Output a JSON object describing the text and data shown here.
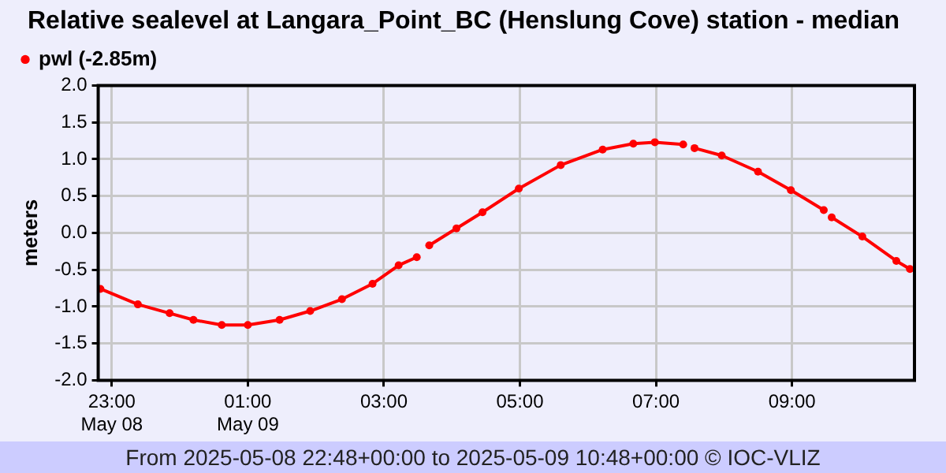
{
  "chart_data": {
    "type": "line",
    "title": "Relative sealevel at Langara_Point_BC (Henslung Cove) station - median",
    "ylabel": "meters",
    "x": [
      "2025-05-08T22:50",
      "2025-05-08T23:23",
      "2025-05-08T23:51",
      "2025-05-09T00:12",
      "2025-05-09T00:37",
      "2025-05-09T01:00",
      "2025-05-09T01:28",
      "2025-05-09T01:55",
      "2025-05-09T02:23",
      "2025-05-09T02:50",
      "2025-05-09T03:13",
      "2025-05-09T03:29",
      "2025-05-09T03:35",
      "2025-05-09T03:40",
      "2025-05-09T04:04",
      "2025-05-09T04:27",
      "2025-05-09T04:59",
      "2025-05-09T05:36",
      "2025-05-09T06:13",
      "2025-05-09T06:40",
      "2025-05-09T06:59",
      "2025-05-09T07:24",
      "2025-05-09T07:29",
      "2025-05-09T07:34",
      "2025-05-09T07:58",
      "2025-05-09T08:30",
      "2025-05-09T08:59",
      "2025-05-09T09:28",
      "2025-05-09T09:31",
      "2025-05-09T09:35",
      "2025-05-09T10:02",
      "2025-05-09T10:32",
      "2025-05-09T10:44"
    ],
    "series": [
      {
        "name": "pwl (-2.85m)",
        "color": "#ff0000",
        "values": [
          -0.76,
          -0.97,
          -1.09,
          -1.18,
          -1.25,
          -1.25,
          -1.18,
          -1.06,
          -0.9,
          -0.69,
          -0.44,
          -0.33,
          null,
          -0.17,
          0.06,
          0.28,
          0.6,
          0.92,
          1.13,
          1.21,
          1.23,
          1.2,
          null,
          1.15,
          1.05,
          0.83,
          0.58,
          0.31,
          null,
          0.21,
          -0.05,
          -0.38,
          -0.49
        ]
      }
    ],
    "xlim": [
      "2025-05-08T22:48",
      "2025-05-09T10:48"
    ],
    "xticks": [
      {
        "value": "2025-05-08T23:00",
        "label": "23:00\nMay 08"
      },
      {
        "value": "2025-05-09T01:00",
        "label": "01:00\nMay 09"
      },
      {
        "value": "2025-05-09T03:00",
        "label": "03:00"
      },
      {
        "value": "2025-05-09T05:00",
        "label": "05:00"
      },
      {
        "value": "2025-05-09T07:00",
        "label": "07:00"
      },
      {
        "value": "2025-05-09T09:00",
        "label": "09:00"
      }
    ],
    "ylim": [
      -2,
      2
    ],
    "yticks": [
      {
        "value": -2,
        "label": "-2.0"
      },
      {
        "value": -1.5,
        "label": "-1.5"
      },
      {
        "value": -1,
        "label": "-1.0"
      },
      {
        "value": -0.5,
        "label": "-0.5"
      },
      {
        "value": 0,
        "label": "0.0"
      },
      {
        "value": 0.5,
        "label": "0.5"
      },
      {
        "value": 1,
        "label": "1.0"
      },
      {
        "value": 1.5,
        "label": "1.5"
      },
      {
        "value": 2,
        "label": "2.0"
      }
    ],
    "grid": true,
    "legend": "top left",
    "marker": "circle",
    "line_style": "solid",
    "annotations": [
      "From 2025-05-08 22:48+00:00 to 2025-05-09 10:48+00:00 © IOC-VLIZ"
    ]
  }
}
